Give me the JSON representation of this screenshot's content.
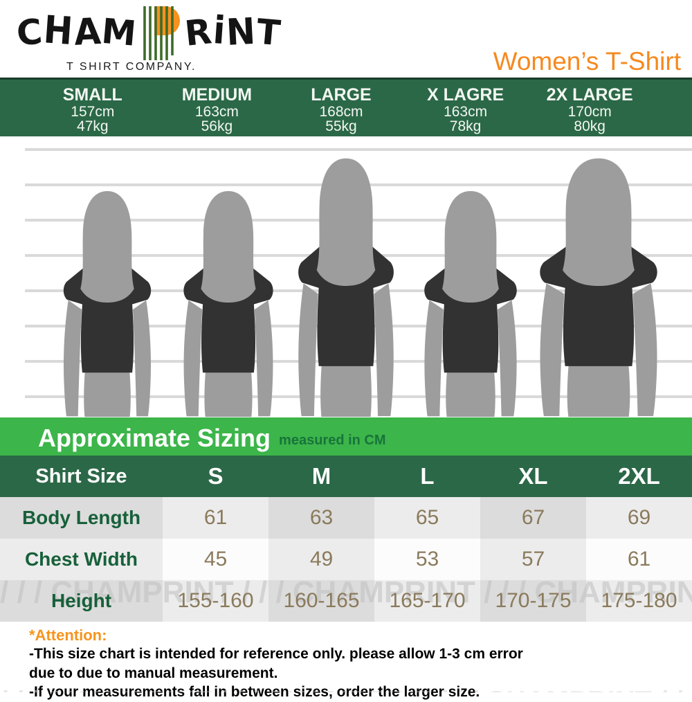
{
  "brand": {
    "logo_left": "CHAM",
    "logo_right": "RiNT",
    "tagline": "T SHIRT COMPANY.",
    "product_title": "Women’s T-Shirt"
  },
  "size_bar": {
    "items": [
      {
        "name": "SMALL",
        "height": "157cm",
        "weight": "47kg"
      },
      {
        "name": "MEDIUM",
        "height": "163cm",
        "weight": "56kg"
      },
      {
        "name": "LARGE",
        "height": "168cm",
        "weight": "55kg"
      },
      {
        "name": "X LAGRE",
        "height": "163cm",
        "weight": "78kg"
      },
      {
        "name": "2X LARGE",
        "height": "170cm",
        "weight": "80kg"
      }
    ]
  },
  "banner": {
    "title": "Approximate Sizing",
    "subtitle": "measured in CM"
  },
  "size_table": {
    "header": [
      "Shirt Size",
      "S",
      "M",
      "L",
      "XL",
      "2XL"
    ],
    "rows": [
      {
        "label": "Body Length",
        "values": [
          "61",
          "63",
          "65",
          "67",
          "69"
        ]
      },
      {
        "label": "Chest Width",
        "values": [
          "45",
          "49",
          "53",
          "57",
          "61"
        ]
      },
      {
        "label": "Height",
        "values": [
          "155-160",
          "160-165",
          "165-170",
          "170-175",
          "175-180"
        ]
      }
    ]
  },
  "watermark_text": "/ / / CHAMPRINT ",
  "attention": {
    "title": "*Attention:",
    "lines": [
      "-This size chart is intended for reference only. please allow 1-3 cm error",
      "due to due to manual measurement.",
      "-If your measurements fall in between sizes, order the larger size."
    ]
  },
  "colors": {
    "dark_green": "#2B6847",
    "bright_green": "#3CB54A",
    "brand_orange": "#F6921E",
    "title_orange": "#F6891F",
    "value_brown": "#8A7A5C",
    "label_green": "#17603A",
    "silhouette_gray": "#9D9D9D",
    "shirt_dark": "#323232",
    "line_gray": "#D9D9D9",
    "watermark_gray": "#BFBFBF"
  }
}
